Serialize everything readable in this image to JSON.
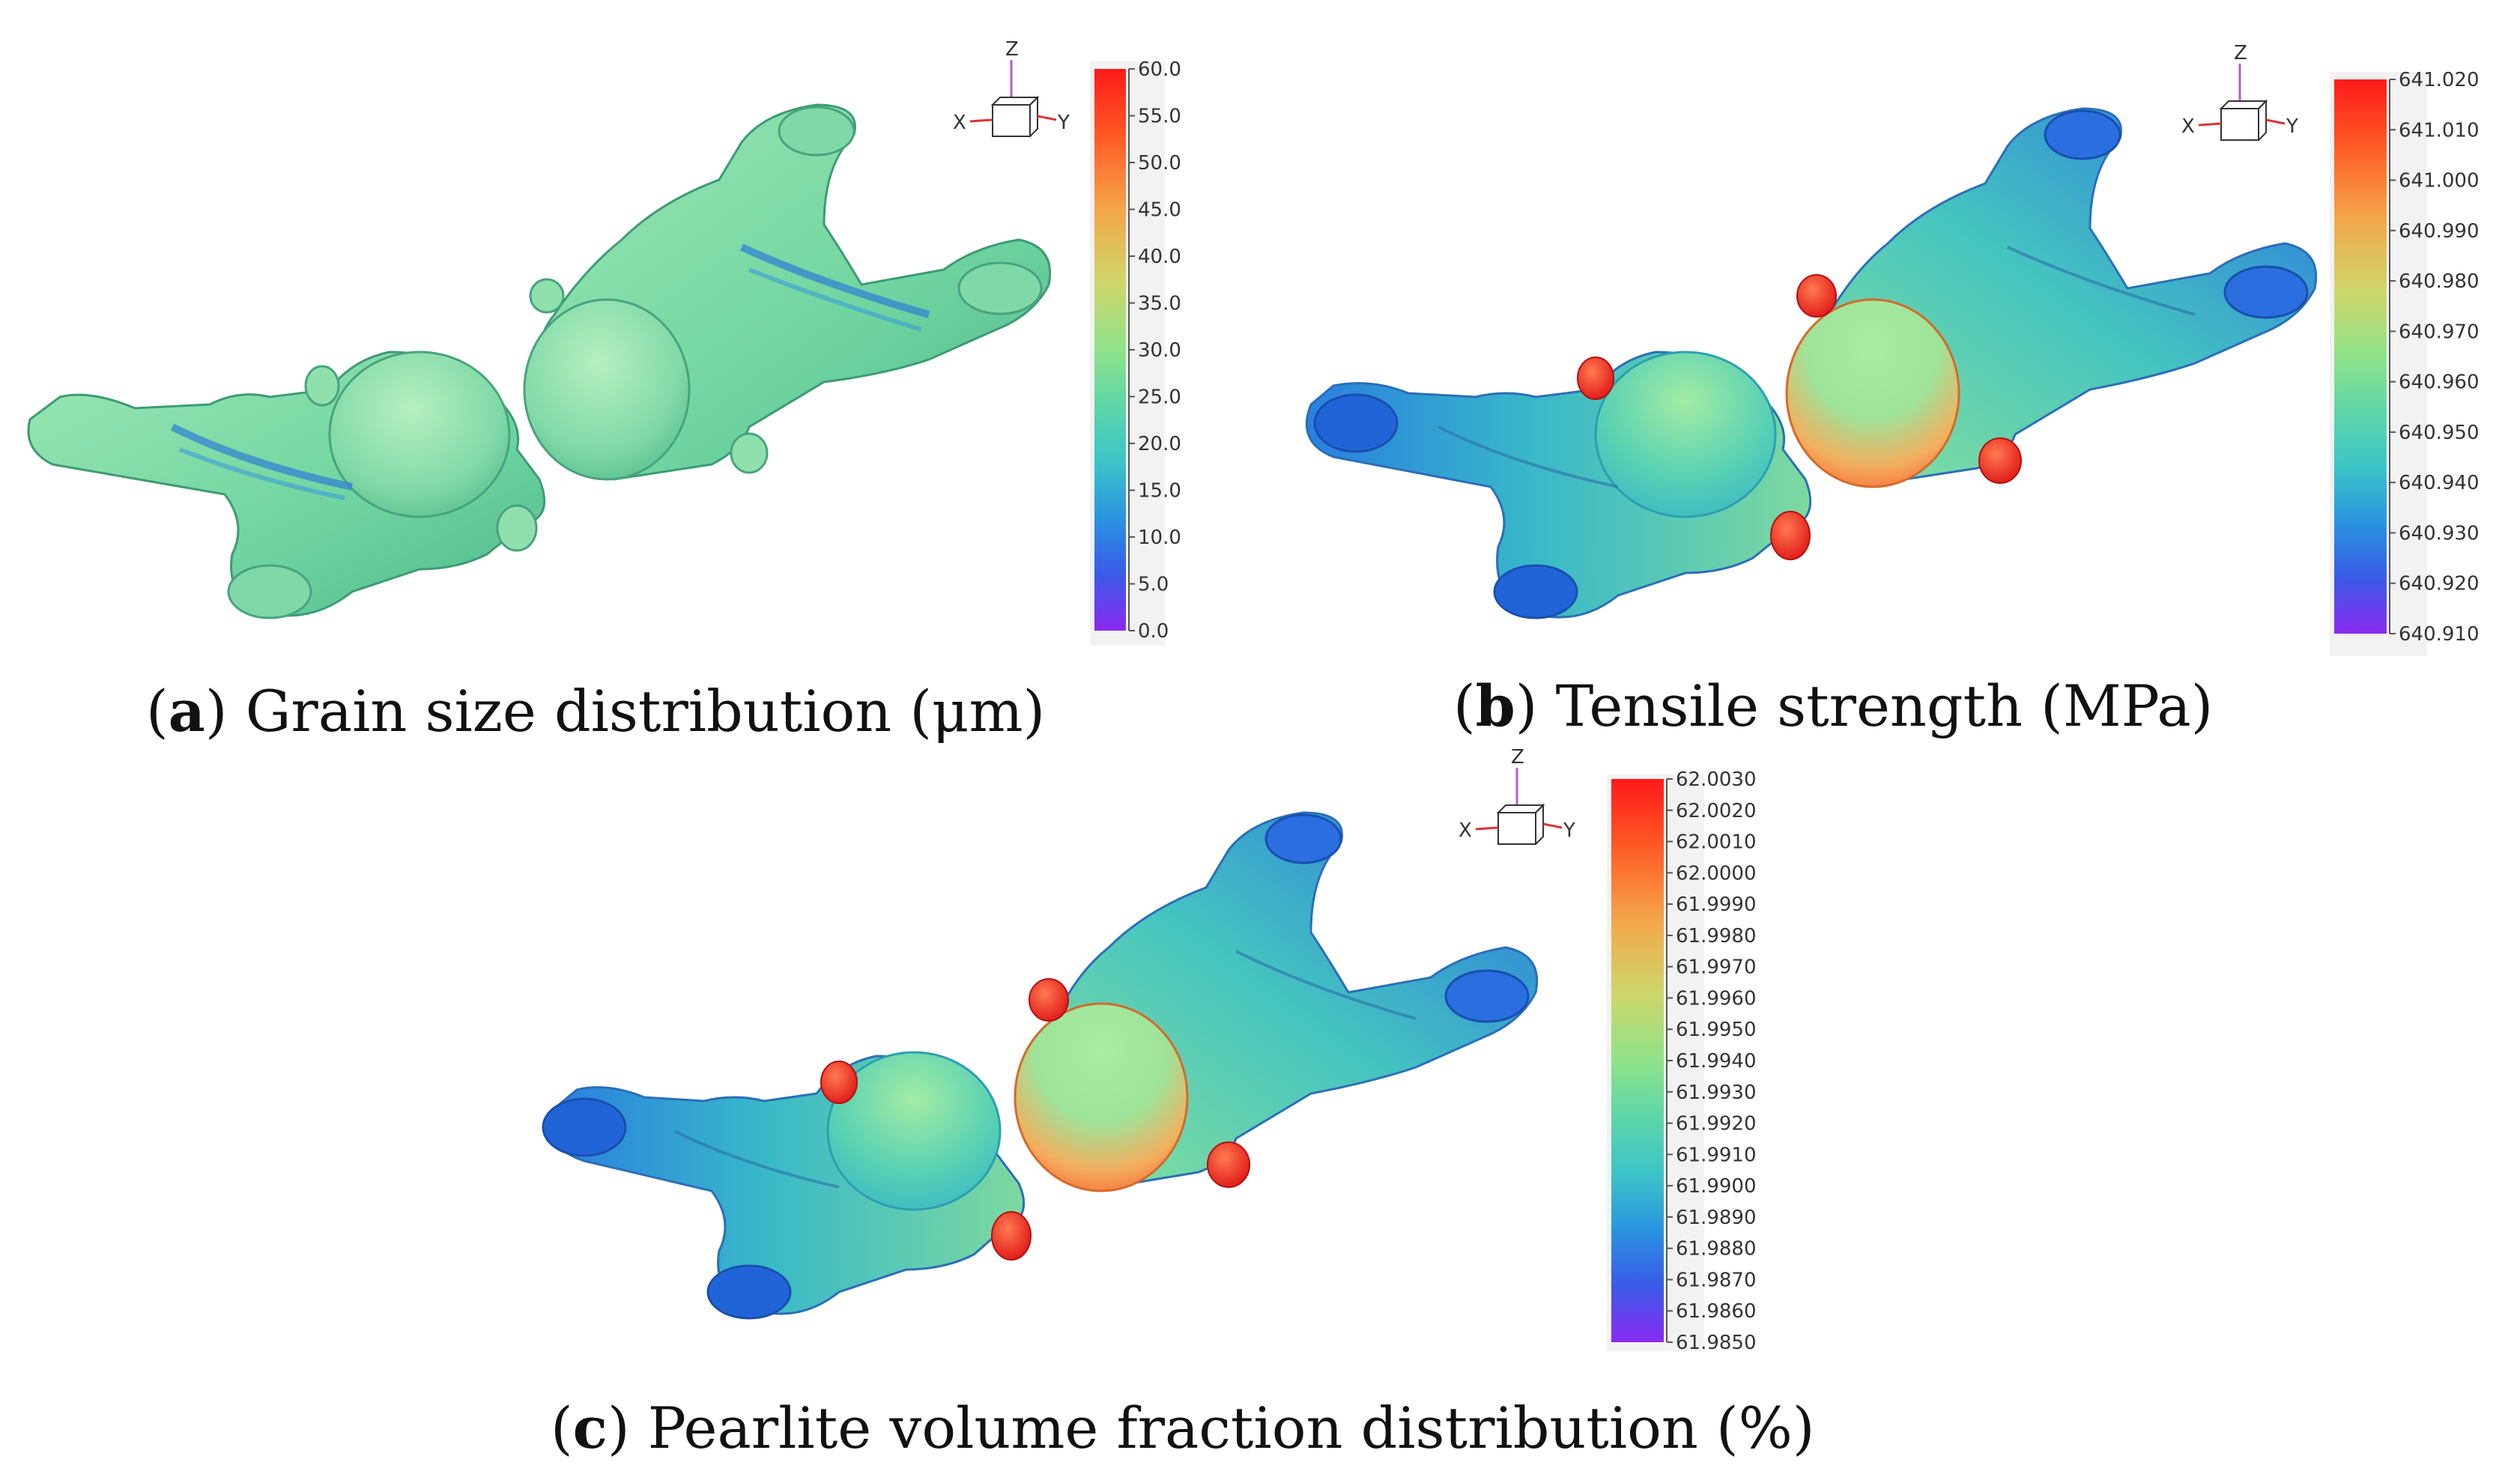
{
  "panels": [
    {
      "id": "a",
      "caption_letter": "a",
      "caption_text": "Grain size distribution (μm)",
      "colorbar_ticks": [
        "60.0",
        "55.0",
        "50.0",
        "45.0",
        "40.0",
        "35.0",
        "30.0",
        "25.0",
        "20.0",
        "15.0",
        "10.0",
        "5.0",
        "0.0"
      ],
      "axis_labels": {
        "x": "X",
        "y": "Y",
        "z": "Z"
      }
    },
    {
      "id": "b",
      "caption_letter": "b",
      "caption_text": "Tensile strength (MPa)",
      "colorbar_ticks": [
        "641.020",
        "641.010",
        "641.000",
        "640.990",
        "640.980",
        "640.970",
        "640.960",
        "640.950",
        "640.940",
        "640.930",
        "640.920",
        "640.910"
      ],
      "axis_labels": {
        "x": "X",
        "y": "Y",
        "z": "Z"
      }
    },
    {
      "id": "c",
      "caption_letter": "c",
      "caption_text": "Pearlite volume fraction distribution (%)",
      "colorbar_ticks": [
        "62.0030",
        "62.0020",
        "62.0010",
        "62.0000",
        "61.9990",
        "61.9980",
        "61.9970",
        "61.9960",
        "61.9950",
        "61.9940",
        "61.9930",
        "61.9920",
        "61.9910",
        "61.9900",
        "61.9890",
        "61.9880",
        "61.9870",
        "61.9860",
        "61.9850"
      ],
      "axis_labels": {
        "x": "X",
        "y": "Y",
        "z": "Z"
      }
    }
  ],
  "colormap": [
    "#ff1a1a",
    "#ff6a2a",
    "#f4a64a",
    "#cfd66a",
    "#8fe38a",
    "#5ed6a8",
    "#3cc4c8",
    "#2a94e0",
    "#3a5ae8",
    "#8a2af0"
  ]
}
